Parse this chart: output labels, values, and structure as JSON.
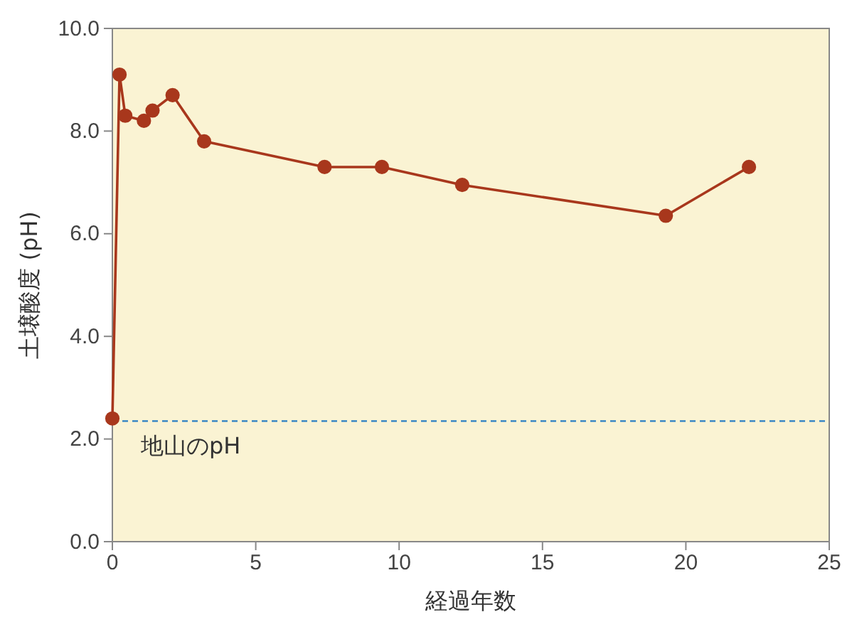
{
  "chart_data": {
    "type": "line",
    "xlabel": "経過年数",
    "ylabel": "土壌酸度 (pH)",
    "x": [
      0,
      0.25,
      0.45,
      1.1,
      1.4,
      2.1,
      3.2,
      7.4,
      9.4,
      12.2,
      19.3,
      22.2
    ],
    "series": [
      {
        "color": "#a8371c",
        "values": [
          2.4,
          9.1,
          8.3,
          8.2,
          8.4,
          8.7,
          7.8,
          7.3,
          7.3,
          6.95,
          6.35,
          7.3
        ]
      }
    ],
    "xlim": [
      0,
      25
    ],
    "xticks": [
      0,
      5,
      10,
      15,
      20,
      25
    ],
    "ylim": [
      0,
      10
    ],
    "yticks": [
      {
        "value": 0,
        "label": "0.0"
      },
      {
        "value": 2,
        "label": "2.0"
      },
      {
        "value": 4,
        "label": "4.0"
      },
      {
        "value": 6,
        "label": "6.0"
      },
      {
        "value": 8,
        "label": "8.0"
      },
      {
        "value": 10,
        "label": "10.0"
      }
    ],
    "ref_lines": [
      {
        "axis": "y",
        "value": 2.35,
        "label": "地山のpH",
        "color": "#2a7fc4",
        "line_style": "dashed"
      }
    ],
    "marker": "circle",
    "line_style": "solid",
    "grid": false
  }
}
